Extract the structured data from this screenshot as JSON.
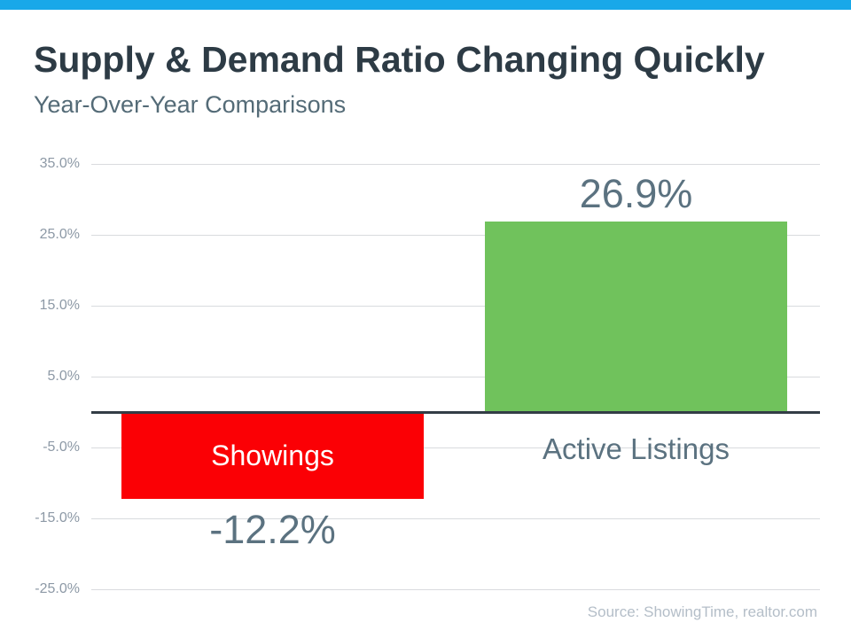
{
  "accent": {
    "color": "#18a8e9"
  },
  "header": {
    "title": "Supply & Demand Ratio Changing Quickly",
    "subtitle": "Year-Over-Year Comparisons"
  },
  "chart_data": {
    "type": "bar",
    "title": "Supply & Demand Ratio Changing Quickly",
    "subtitle": "Year-Over-Year Comparisons",
    "categories": [
      "Showings",
      "Active Listings"
    ],
    "values": [
      -12.2,
      26.9
    ],
    "value_labels": [
      "-12.2%",
      "26.9%"
    ],
    "bar_colors": [
      "#fb0005",
      "#70c25c"
    ],
    "yticks": [
      {
        "label": "35.0%",
        "value": 35
      },
      {
        "label": "25.0%",
        "value": 25
      },
      {
        "label": "15.0%",
        "value": 15
      },
      {
        "label": "5.0%",
        "value": 5
      },
      {
        "label": "-5.0%",
        "value": -5
      },
      {
        "label": "-15.0%",
        "value": -15
      },
      {
        "label": "-25.0%",
        "value": -25
      }
    ],
    "ylim": [
      -25,
      35
    ],
    "grid": true,
    "legend_position": "none",
    "axis_color": "#333d46",
    "gridline_color": "#d9dbde",
    "tick_label_color": "#8d99a6",
    "data_label_color": "#5b7280"
  },
  "footer": {
    "source": "Source: ShowingTime, realtor.com"
  }
}
